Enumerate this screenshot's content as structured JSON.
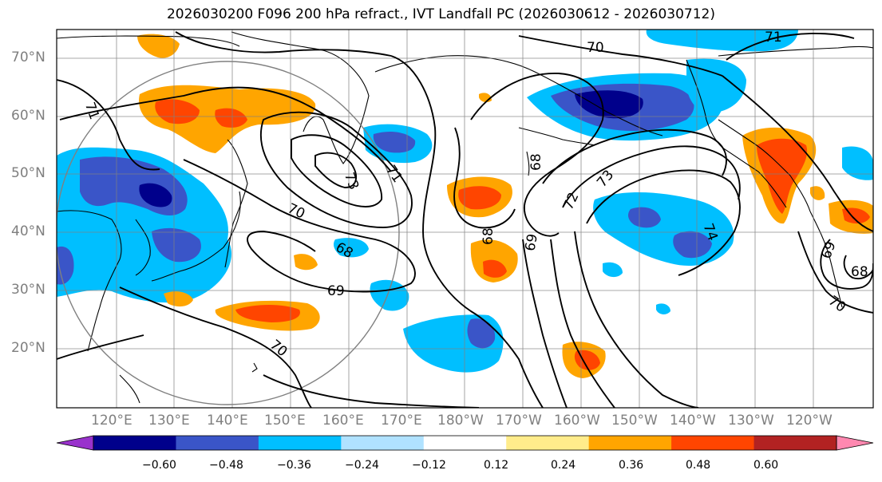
{
  "title": "2026030200 F096 200 hPa refract., IVT Landfall PC (2026030612 - 2026030712)",
  "lat_labels": [
    "70°N",
    "60°N",
    "50°N",
    "40°N",
    "30°N",
    "20°N"
  ],
  "lon_labels": [
    "120°E",
    "130°E",
    "140°E",
    "150°E",
    "160°E",
    "170°E",
    "180°W",
    "170°W",
    "160°W",
    "150°W",
    "140°W",
    "130°W",
    "120°W"
  ],
  "colorbar": {
    "colors": [
      "#9932cc",
      "#00008b",
      "#3a55c8",
      "#00bfff",
      "#b0e2ff",
      "#ffffff",
      "#ffec8b",
      "#ffa500",
      "#ff4500",
      "#b22222",
      "#ff88b0"
    ],
    "ticks": [
      "−0.60",
      "−0.48",
      "−0.36",
      "−0.24",
      "−0.12",
      "0.12",
      "0.24",
      "0.36",
      "0.48",
      "0.60"
    ]
  },
  "contour_labels": [
    "70",
    "71",
    "71",
    "71",
    "73",
    "70",
    "68",
    "69",
    "70",
    "68",
    "69",
    "72",
    "73",
    "74",
    "68",
    "69",
    "70",
    "68"
  ],
  "legend_colors": {
    "neg_strong": "#00008b",
    "neg_med": "#3a55c8",
    "neg_light": "#00bfff",
    "neg_faint": "#b0e2ff",
    "pos_faint": "#ffec8b",
    "pos_light": "#ffa500",
    "pos_med": "#ff4500"
  }
}
